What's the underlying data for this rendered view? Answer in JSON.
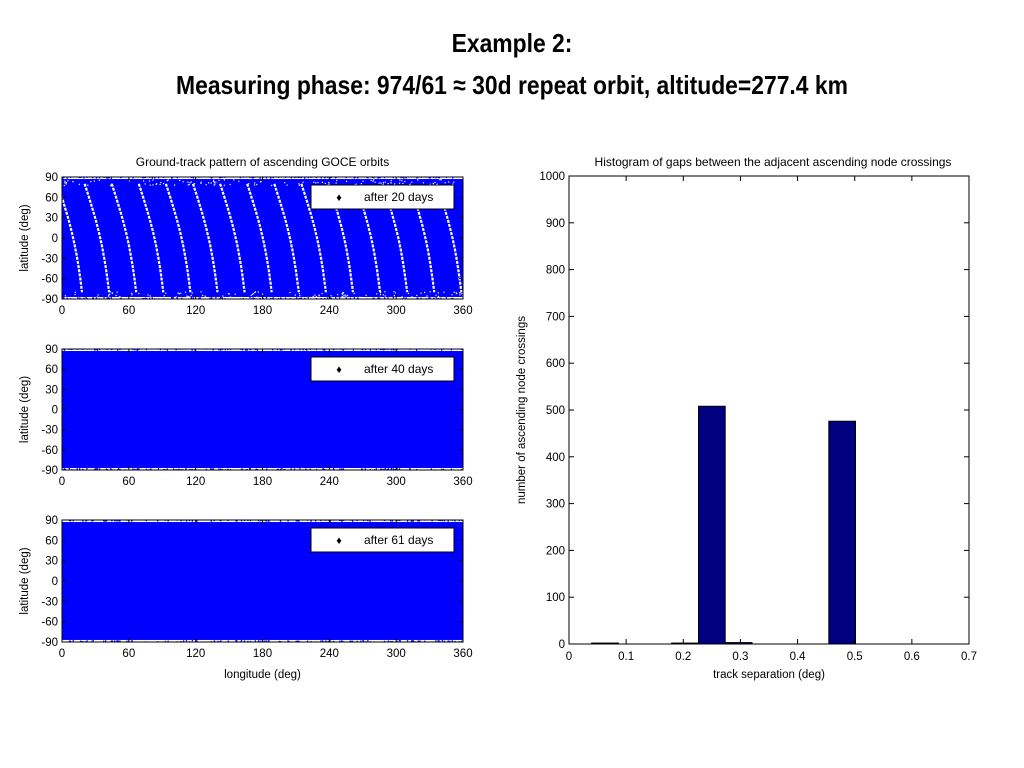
{
  "slide": {
    "title_line1": "Example 2:",
    "title_line2": "Measuring phase: 974/61 ≈ 30d repeat orbit, altitude=277.4 km"
  },
  "colors": {
    "track_blue": "#0000FF",
    "bar_fill": "#000080",
    "text": "#000000"
  },
  "chart_data": [
    {
      "type": "scatter",
      "title": "Ground-track pattern of ascending GOCE orbits",
      "xlabel": "",
      "ylabel": "latitude (deg)",
      "xlim": [
        0,
        360
      ],
      "ylim": [
        -90,
        90
      ],
      "xticks": [
        "0",
        "60",
        "120",
        "180",
        "240",
        "300",
        "360"
      ],
      "yticks": [
        "90",
        "60",
        "30",
        "0",
        "-30",
        "-60",
        "-90"
      ],
      "legend": {
        "label": "after 20 days",
        "position": "top-right",
        "marker": "point"
      },
      "coverage": "sparse",
      "track_count": 16
    },
    {
      "type": "scatter",
      "title": "",
      "xlabel": "",
      "ylabel": "latitude (deg)",
      "xlim": [
        0,
        360
      ],
      "ylim": [
        -90,
        90
      ],
      "xticks": [
        "0",
        "60",
        "120",
        "180",
        "240",
        "300",
        "360"
      ],
      "yticks": [
        "90",
        "60",
        "30",
        "0",
        "-30",
        "-60",
        "-90"
      ],
      "legend": {
        "label": "after 40 days",
        "position": "top-right",
        "marker": "point"
      },
      "coverage": "dense"
    },
    {
      "type": "scatter",
      "title": "",
      "xlabel": "longitude (deg)",
      "ylabel": "latitude (deg)",
      "xlim": [
        0,
        360
      ],
      "ylim": [
        -90,
        90
      ],
      "xticks": [
        "0",
        "60",
        "120",
        "180",
        "240",
        "300",
        "360"
      ],
      "yticks": [
        "90",
        "60",
        "30",
        "0",
        "-30",
        "-60",
        "-90"
      ],
      "legend": {
        "label": "after 61 days",
        "position": "top-right",
        "marker": "point"
      },
      "coverage": "dense"
    },
    {
      "type": "bar",
      "title": "Histogram of gaps between the adjacent ascending node crossings",
      "xlabel": "track separation (deg)",
      "ylabel": "number of ascending node crossings",
      "xlim": [
        0,
        0.7
      ],
      "ylim": [
        0,
        1000
      ],
      "xticks": [
        "0",
        "0.1",
        "0.2",
        "0.3",
        "0.4",
        "0.5",
        "0.6",
        "0.7"
      ],
      "yticks": [
        "1000",
        "900",
        "800",
        "700",
        "600",
        "500",
        "400",
        "300",
        "200",
        "100",
        "0"
      ],
      "bin_width": 0.0467,
      "bins": [
        {
          "center": 0.063,
          "value": 2
        },
        {
          "center": 0.203,
          "value": 2
        },
        {
          "center": 0.25,
          "value": 508
        },
        {
          "center": 0.297,
          "value": 3
        },
        {
          "center": 0.478,
          "value": 476
        }
      ]
    }
  ]
}
